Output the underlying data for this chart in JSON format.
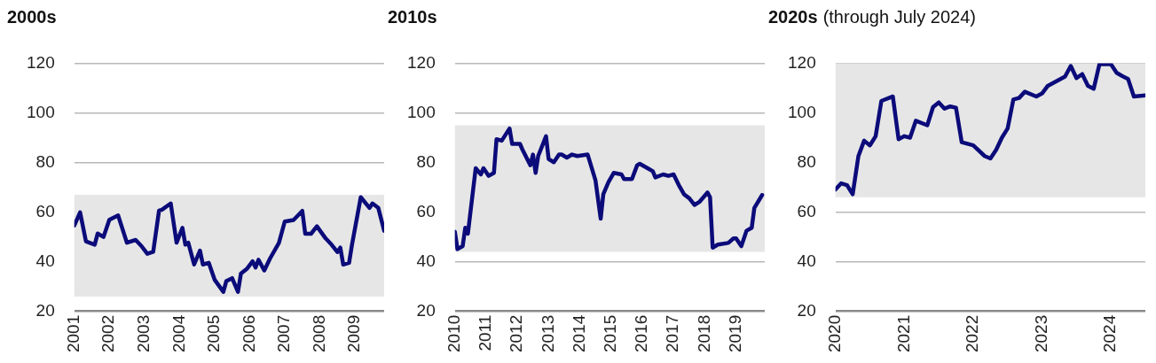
{
  "chart_data": [
    {
      "type": "line",
      "title": "2000s",
      "xlim": [
        "2001-01",
        "2009-11"
      ],
      "xticks": [
        "2001",
        "2002",
        "2003",
        "2004",
        "2005",
        "2006",
        "2007",
        "2008",
        "2009"
      ],
      "ylim": [
        20,
        120
      ],
      "yticks": [
        20,
        40,
        60,
        80,
        100,
        120
      ],
      "grid": "y",
      "legend": false,
      "bands": [
        {
          "axis": "y",
          "from": 26,
          "to": 67,
          "color": "#e6e6e6"
        }
      ],
      "series": [
        {
          "color": "#0b0b7a",
          "x": [
            "2001-01",
            "2001-03",
            "2001-05",
            "2001-08",
            "2001-09",
            "2001-11",
            "2002-01",
            "2002-04",
            "2002-07",
            "2002-10",
            "2002-12",
            "2003-02",
            "2003-04",
            "2003-06",
            "2003-07",
            "2003-10",
            "2003-12",
            "2004-02",
            "2004-03",
            "2004-04",
            "2004-06",
            "2004-08",
            "2004-09",
            "2004-11",
            "2005-01",
            "2005-04",
            "2005-05",
            "2005-07",
            "2005-09",
            "2005-10",
            "2005-12",
            "2006-02",
            "2006-03",
            "2006-04",
            "2006-06",
            "2006-08",
            "2006-11",
            "2007-01",
            "2007-04",
            "2007-07",
            "2007-08",
            "2007-10",
            "2007-12",
            "2008-03",
            "2008-05",
            "2008-07",
            "2008-08",
            "2008-09",
            "2008-11",
            "2008-12",
            "2009-03",
            "2009-06",
            "2009-07",
            "2009-09",
            "2009-11"
          ],
          "values": [
            54.6,
            59.9,
            48.2,
            46.9,
            51.4,
            50,
            56.9,
            58.7,
            47.7,
            48.8,
            46.3,
            43.2,
            44,
            60.6,
            61,
            63.5,
            47.7,
            53.7,
            46.9,
            47.7,
            38.9,
            44.5,
            38.9,
            39.6,
            32.8,
            27.9,
            32.2,
            33.4,
            27.9,
            35.2,
            37.1,
            40.2,
            37.7,
            40.8,
            36.5,
            41.4,
            47.6,
            56.2,
            56.8,
            60.5,
            51.3,
            51.3,
            54.3,
            49.4,
            46.9,
            43.9,
            45.7,
            38.9,
            39.6,
            46.9,
            66,
            61.7,
            63.5,
            61.7,
            52.5
          ]
        }
      ]
    },
    {
      "type": "line",
      "title": "2010s",
      "xlim": [
        "2010-01",
        "2019-12"
      ],
      "xticks": [
        "2010",
        "2011",
        "2012",
        "2013",
        "2014",
        "2015",
        "2016",
        "2017",
        "2018",
        "2019"
      ],
      "ylim": [
        20,
        120
      ],
      "yticks": [
        20,
        40,
        60,
        80,
        100,
        120
      ],
      "grid": "y",
      "legend": false,
      "bands": [
        {
          "axis": "y",
          "from": 44,
          "to": 95,
          "color": "#e6e6e6"
        }
      ],
      "series": [
        {
          "color": "#0b0b7a",
          "x": [
            "2010-01",
            "2010-02",
            "2010-04",
            "2010-05",
            "2010-06",
            "2010-09",
            "2010-11",
            "2010-12",
            "2011-02",
            "2011-04",
            "2011-05",
            "2011-07",
            "2011-10",
            "2011-11",
            "2012-02",
            "2012-03",
            "2012-06",
            "2012-07",
            "2012-08",
            "2012-09",
            "2012-12",
            "2013-01",
            "2013-03",
            "2013-05",
            "2013-06",
            "2013-08",
            "2013-10",
            "2013-12",
            "2014-04",
            "2014-07",
            "2014-09",
            "2014-10",
            "2014-12",
            "2015-02",
            "2015-05",
            "2015-06",
            "2015-09",
            "2015-11",
            "2015-12",
            "2016-03",
            "2016-05",
            "2016-06",
            "2016-09",
            "2016-11",
            "2017-01",
            "2017-03",
            "2017-05",
            "2017-07",
            "2017-09",
            "2017-11",
            "2018-02",
            "2018-03",
            "2018-04",
            "2018-06",
            "2018-10",
            "2018-12",
            "2019-01",
            "2019-03",
            "2019-05",
            "2019-07",
            "2019-08",
            "2019-11"
          ],
          "values": [
            52.1,
            45.1,
            46.3,
            53.7,
            51.3,
            77.7,
            75.2,
            77.7,
            74.6,
            75.8,
            89.4,
            88.8,
            93.7,
            87.5,
            87.5,
            85.1,
            78.9,
            83.2,
            75.8,
            82.6,
            90.6,
            81.4,
            80.1,
            83.2,
            83.2,
            82,
            83.2,
            82.6,
            83.2,
            72.8,
            57.4,
            67.2,
            72.1,
            75.8,
            75.2,
            73.3,
            73.3,
            78.9,
            79.5,
            77.7,
            76.5,
            74,
            75.2,
            74.6,
            75.2,
            70.9,
            67.2,
            65.6,
            62.9,
            64.2,
            67.9,
            66,
            45.7,
            46.9,
            47.6,
            49.4,
            49.4,
            46.3,
            52.5,
            53.7,
            61.7,
            66.9
          ]
        }
      ]
    },
    {
      "type": "line",
      "title": "2020s",
      "subtitle": "(through July 2024)",
      "xlim": [
        "2020-01",
        "2024-07"
      ],
      "xticks": [
        "2020",
        "2021",
        "2022",
        "2023",
        "2024"
      ],
      "ylim": [
        20,
        120
      ],
      "yticks": [
        20,
        40,
        60,
        80,
        100,
        120
      ],
      "grid": "y",
      "legend": false,
      "bands": [
        {
          "axis": "y",
          "from": 66,
          "to": 120,
          "color": "#e6e6e6"
        }
      ],
      "series": [
        {
          "color": "#0b0b7a",
          "x": [
            "2020-01",
            "2020-02",
            "2020-03",
            "2020-04",
            "2020-05",
            "2020-06",
            "2020-07",
            "2020-08",
            "2020-09",
            "2020-11",
            "2020-12",
            "2021-01",
            "2021-02",
            "2021-03",
            "2021-05",
            "2021-06",
            "2021-07",
            "2021-08",
            "2021-09",
            "2021-10",
            "2021-11",
            "2022-01",
            "2022-03",
            "2022-04",
            "2022-05",
            "2022-06",
            "2022-07",
            "2022-08",
            "2022-09",
            "2022-10",
            "2022-12",
            "2023-01",
            "2023-02",
            "2023-04",
            "2023-05",
            "2023-06",
            "2023-07",
            "2023-08",
            "2023-09",
            "2023-10",
            "2023-11",
            "2024-01",
            "2024-02",
            "2024-03",
            "2024-04",
            "2024-05",
            "2024-07"
          ],
          "values": [
            69.1,
            71.6,
            70.9,
            67.2,
            82.6,
            88.8,
            86.9,
            90.6,
            104.8,
            106.6,
            89.4,
            90.6,
            90,
            96.8,
            95,
            102.3,
            104.2,
            101.7,
            102.6,
            102.1,
            88.2,
            86.9,
            82.6,
            81.6,
            85.1,
            90,
            93.7,
            105.4,
            106,
            108.5,
            106.6,
            107.8,
            110.9,
            113.4,
            114.6,
            118.9,
            114,
            115.6,
            110.9,
            109.7,
            119.6,
            119.6,
            116.1,
            114.8,
            113.6,
            106.6,
            107
          ]
        }
      ]
    }
  ]
}
